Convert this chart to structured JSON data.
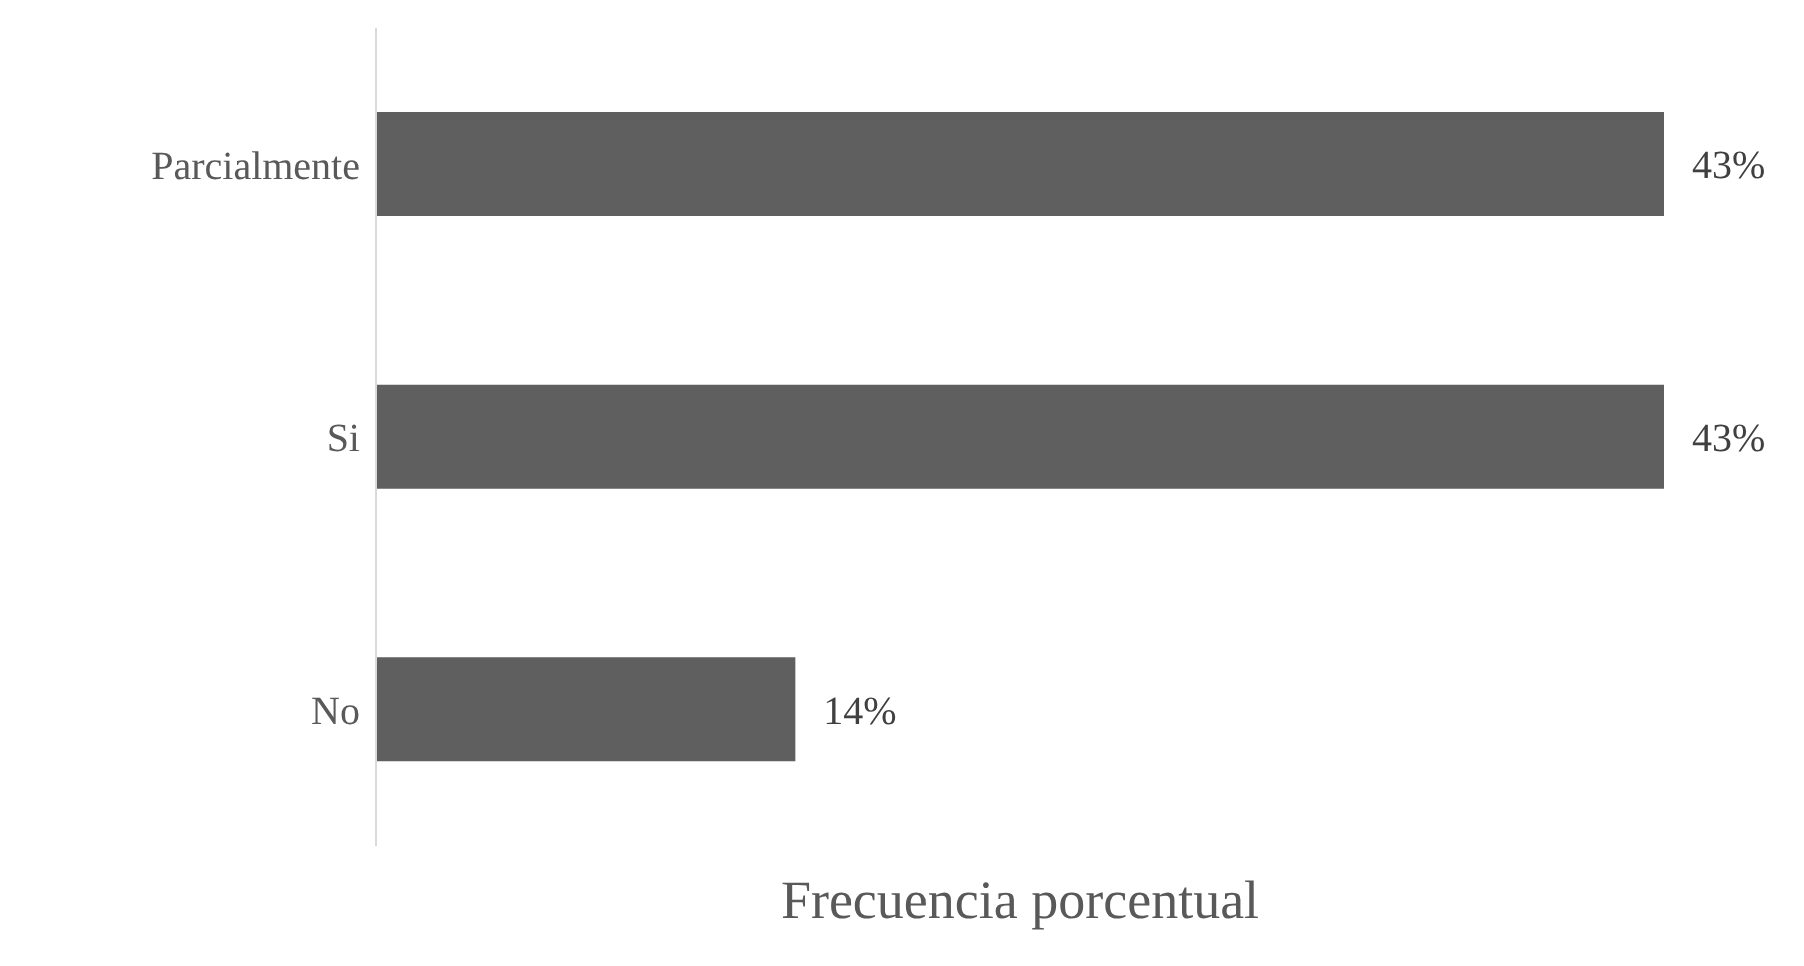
{
  "chart_data": {
    "type": "bar",
    "orientation": "horizontal",
    "xlabel": "Frecuencia porcentual",
    "categories": [
      "Parcialmente",
      "Si",
      "No"
    ],
    "values": [
      43,
      43,
      14
    ],
    "color": "#5f5f5f",
    "value_labels": [
      "43%",
      "43%",
      "14%"
    ]
  }
}
